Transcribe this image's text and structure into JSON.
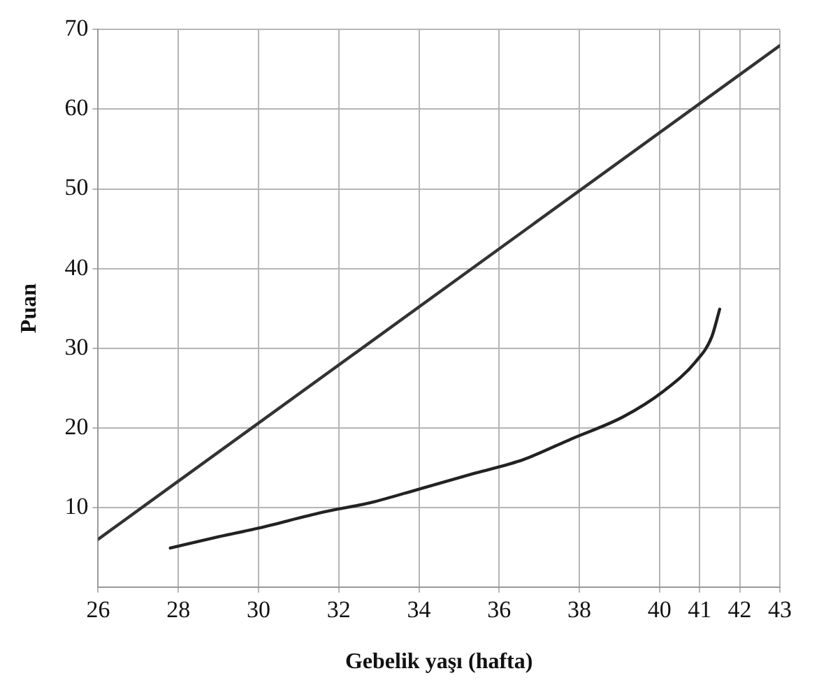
{
  "chart_data": {
    "type": "line",
    "xlabel": "Gebelik yaşı (hafta)",
    "ylabel": "Puan",
    "xlim": [
      26,
      43
    ],
    "xticks": [
      26,
      28,
      30,
      32,
      34,
      36,
      38,
      40,
      41,
      42,
      43
    ],
    "ylim": [
      0,
      70
    ],
    "yticks": [
      10,
      20,
      30,
      40,
      50,
      60,
      70
    ],
    "grid": true,
    "legend": false,
    "marker": "none",
    "line_style": "solid",
    "series": [
      {
        "color": "#333333",
        "x": [
          26,
          43
        ],
        "values": [
          6,
          68
        ]
      },
      {
        "color": "#222222",
        "x": [
          27.8,
          28.9,
          30,
          31.6,
          32.8,
          34,
          35.4,
          36.6,
          37.8,
          39.1,
          40.1,
          40.9,
          41.3,
          41.5
        ],
        "values": [
          4.9,
          6.2,
          7.4,
          9.4,
          10.6,
          12.3,
          14.3,
          16,
          18.6,
          21.4,
          24.6,
          28.3,
          31.4,
          34.9
        ]
      }
    ]
  }
}
